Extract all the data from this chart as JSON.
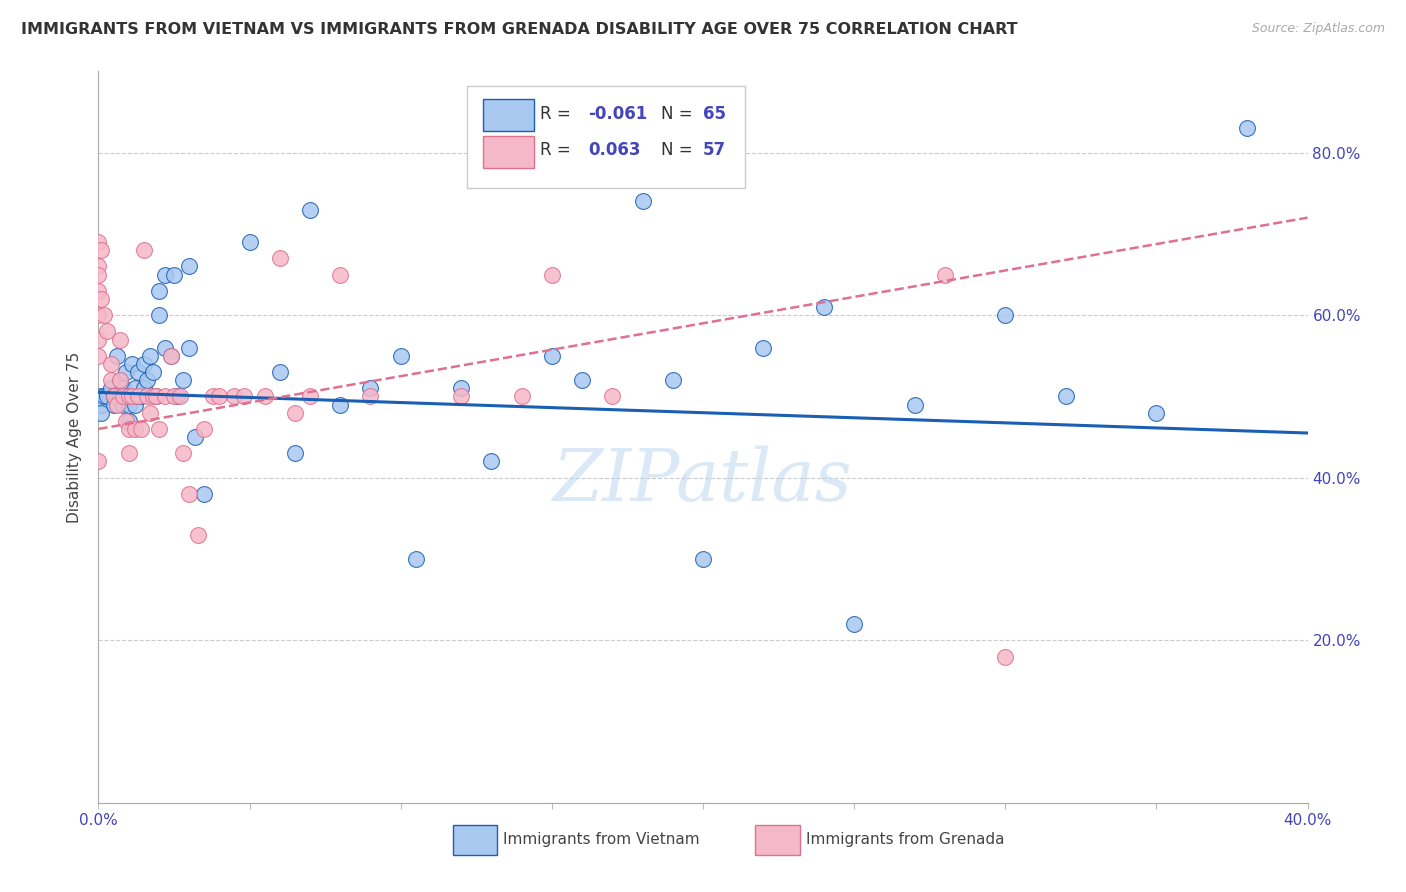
{
  "title": "IMMIGRANTS FROM VIETNAM VS IMMIGRANTS FROM GRENADA DISABILITY AGE OVER 75 CORRELATION CHART",
  "source": "Source: ZipAtlas.com",
  "ylabel": "Disability Age Over 75",
  "xmin": 0.0,
  "xmax": 0.4,
  "ymin": 0.0,
  "ymax": 0.9,
  "yticks": [
    0.0,
    0.2,
    0.4,
    0.6,
    0.8
  ],
  "ytick_labels_left": [
    "",
    "",
    "",
    "",
    ""
  ],
  "ytick_labels_right": [
    "",
    "20.0%",
    "40.0%",
    "60.0%",
    "80.0%"
  ],
  "xticks": [
    0.0,
    0.05,
    0.1,
    0.15,
    0.2,
    0.25,
    0.3,
    0.35,
    0.4
  ],
  "xtick_labels": [
    "0.0%",
    "",
    "",
    "",
    "",
    "",
    "",
    "",
    "40.0%"
  ],
  "color_vietnam": "#a8c8f0",
  "color_grenada": "#f5b8c8",
  "color_line_vietnam": "#1a5fb4",
  "color_line_grenada": "#e07090",
  "color_grid": "#cccccc",
  "color_axis_text": "#4444bb",
  "color_title": "#333333",
  "watermark": "ZIPatlas",
  "vietnam_x": [
    0.001,
    0.001,
    0.001,
    0.002,
    0.003,
    0.004,
    0.005,
    0.005,
    0.006,
    0.007,
    0.007,
    0.008,
    0.008,
    0.009,
    0.009,
    0.01,
    0.01,
    0.01,
    0.011,
    0.012,
    0.012,
    0.013,
    0.013,
    0.014,
    0.015,
    0.015,
    0.016,
    0.017,
    0.018,
    0.019,
    0.02,
    0.02,
    0.022,
    0.022,
    0.024,
    0.025,
    0.026,
    0.028,
    0.03,
    0.03,
    0.032,
    0.035,
    0.05,
    0.06,
    0.065,
    0.07,
    0.08,
    0.09,
    0.1,
    0.105,
    0.12,
    0.13,
    0.15,
    0.16,
    0.18,
    0.19,
    0.2,
    0.22,
    0.24,
    0.25,
    0.27,
    0.3,
    0.32,
    0.35,
    0.38
  ],
  "vietnam_y": [
    0.5,
    0.49,
    0.48,
    0.5,
    0.5,
    0.51,
    0.5,
    0.49,
    0.55,
    0.52,
    0.5,
    0.51,
    0.49,
    0.53,
    0.5,
    0.5,
    0.49,
    0.47,
    0.54,
    0.51,
    0.49,
    0.53,
    0.5,
    0.5,
    0.54,
    0.51,
    0.52,
    0.55,
    0.53,
    0.5,
    0.63,
    0.6,
    0.56,
    0.65,
    0.55,
    0.65,
    0.5,
    0.52,
    0.66,
    0.56,
    0.45,
    0.38,
    0.69,
    0.53,
    0.43,
    0.73,
    0.49,
    0.51,
    0.55,
    0.3,
    0.51,
    0.42,
    0.55,
    0.52,
    0.74,
    0.52,
    0.3,
    0.56,
    0.61,
    0.22,
    0.49,
    0.6,
    0.5,
    0.48,
    0.83
  ],
  "grenada_x": [
    0.0,
    0.0,
    0.0,
    0.0,
    0.0,
    0.0,
    0.0,
    0.0,
    0.001,
    0.001,
    0.002,
    0.003,
    0.004,
    0.004,
    0.005,
    0.006,
    0.007,
    0.007,
    0.008,
    0.009,
    0.01,
    0.01,
    0.01,
    0.011,
    0.012,
    0.013,
    0.014,
    0.015,
    0.016,
    0.017,
    0.018,
    0.019,
    0.02,
    0.022,
    0.024,
    0.025,
    0.027,
    0.028,
    0.03,
    0.033,
    0.035,
    0.038,
    0.04,
    0.045,
    0.048,
    0.055,
    0.06,
    0.065,
    0.07,
    0.08,
    0.09,
    0.12,
    0.14,
    0.15,
    0.17,
    0.28,
    0.3
  ],
  "grenada_y": [
    0.69,
    0.66,
    0.65,
    0.63,
    0.6,
    0.57,
    0.55,
    0.42,
    0.68,
    0.62,
    0.6,
    0.58,
    0.54,
    0.52,
    0.5,
    0.49,
    0.57,
    0.52,
    0.5,
    0.47,
    0.5,
    0.46,
    0.43,
    0.5,
    0.46,
    0.5,
    0.46,
    0.68,
    0.5,
    0.48,
    0.5,
    0.5,
    0.46,
    0.5,
    0.55,
    0.5,
    0.5,
    0.43,
    0.38,
    0.33,
    0.46,
    0.5,
    0.5,
    0.5,
    0.5,
    0.5,
    0.67,
    0.48,
    0.5,
    0.65,
    0.5,
    0.5,
    0.5,
    0.65,
    0.5,
    0.65,
    0.18
  ]
}
